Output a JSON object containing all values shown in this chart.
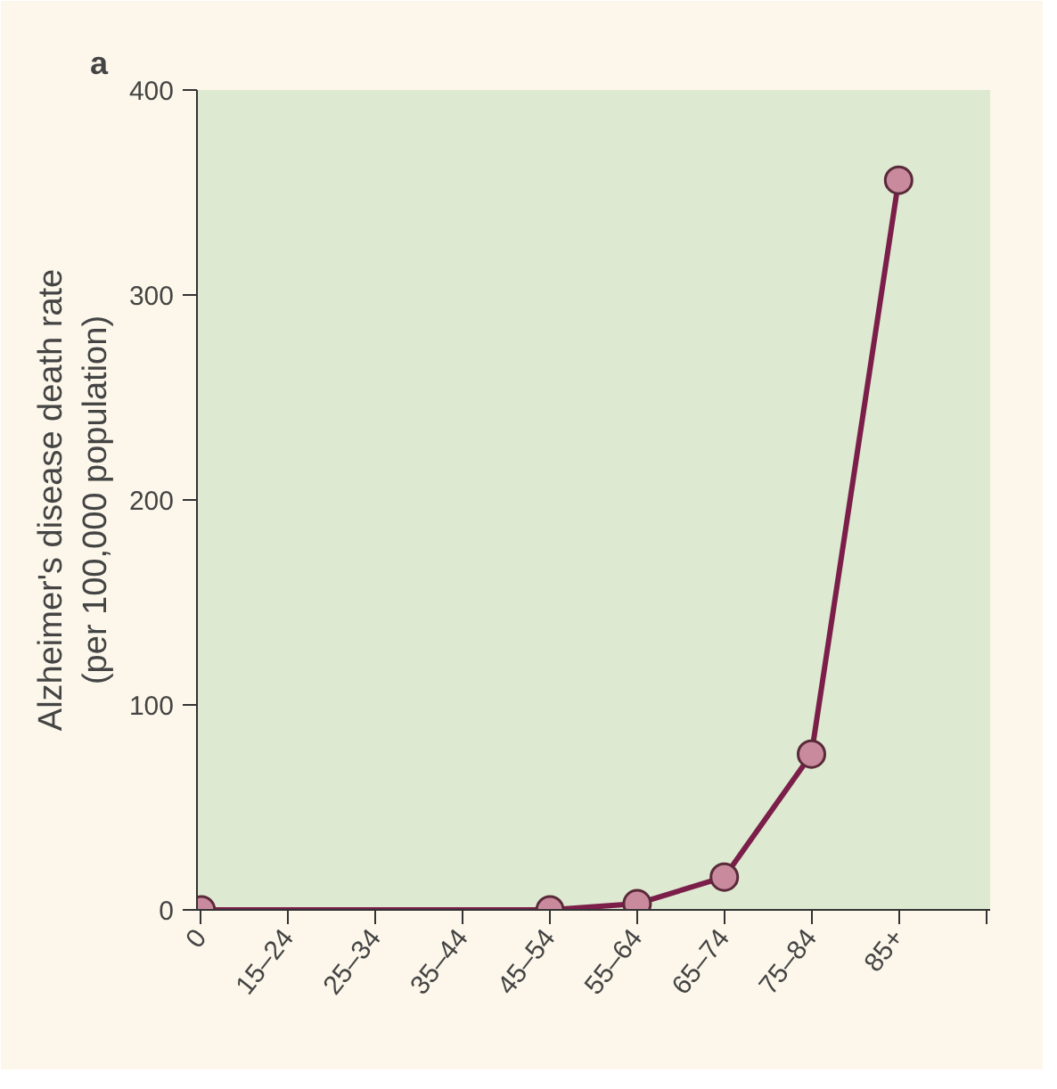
{
  "chart_data": {
    "type": "line",
    "title": "a",
    "ylabel": "Alzheimer's disease death rate\n(per 100,000 population)",
    "categories": [
      "0",
      "15–24",
      "25–34",
      "35–44",
      "45–54",
      "55–64",
      "65–74",
      "75–84",
      "85+",
      null
    ],
    "series": [
      {
        "color": "#7b1e4a",
        "values": [
          0,
          null,
          null,
          null,
          0,
          3,
          16,
          76,
          356,
          null
        ]
      }
    ],
    "ylim": [
      0,
      400
    ],
    "yticks": [
      0,
      100,
      200,
      300,
      400
    ],
    "marker": "circle",
    "line_style": "solid"
  }
}
